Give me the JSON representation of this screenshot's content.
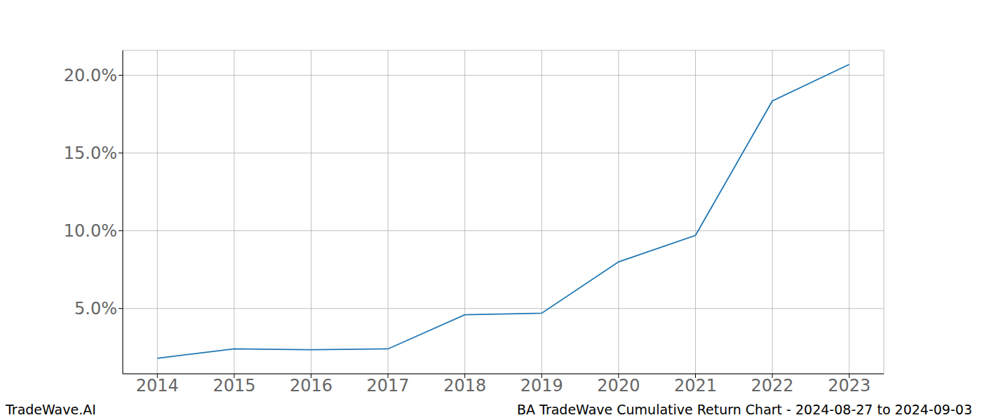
{
  "chart_data": {
    "type": "line",
    "annotations": [
      "TradeWave.AI",
      "BA TradeWave Cumulative Return Chart - 2024-08-27 to 2024-09-03"
    ],
    "x": [
      2014,
      2015,
      2016,
      2017,
      2018,
      2019,
      2020,
      2021,
      2022,
      2023
    ],
    "values": [
      1.8,
      2.4,
      2.35,
      2.4,
      4.6,
      4.7,
      8.0,
      9.7,
      18.35,
      20.7
    ],
    "color": "#1f77b4",
    "xlim": [
      2013.55,
      2023.45
    ],
    "xticks": [
      2014,
      2015,
      2016,
      2017,
      2018,
      2019,
      2020,
      2021,
      2022,
      2023
    ],
    "ylim": [
      0.8,
      21.6
    ],
    "yticks": [
      {
        "value": 5,
        "label": "5.0%"
      },
      {
        "value": 10,
        "label": "10.0%"
      },
      {
        "value": 15,
        "label": "15.0%"
      },
      {
        "value": 20,
        "label": "20.0%"
      }
    ],
    "grid": true
  }
}
